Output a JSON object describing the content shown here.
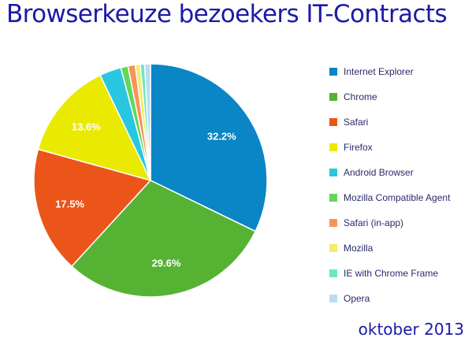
{
  "header": {
    "title": "Browserkeuze bezoekers IT-Contracts"
  },
  "footer": {
    "text": "oktober 2013"
  },
  "chart_data": {
    "type": "pie",
    "title": "Browserkeuze bezoekers IT-Contracts",
    "start_angle_deg": 0,
    "direction": "clockwise",
    "legend_position": "right",
    "slices": [
      {
        "name": "Internet Explorer",
        "value": 32.2,
        "color": "#0a85c5",
        "label": "32.2%"
      },
      {
        "name": "Chrome",
        "value": 29.6,
        "color": "#56b233",
        "label": "29.6%"
      },
      {
        "name": "Safari",
        "value": 17.5,
        "color": "#ec5519",
        "label": "17.5%"
      },
      {
        "name": "Firefox",
        "value": 13.6,
        "color": "#eaea00",
        "label": "13.6%"
      },
      {
        "name": "Android Browser",
        "value": 3.0,
        "color": "#29c6e0",
        "label": ""
      },
      {
        "name": "Mozilla Compatible Agent",
        "value": 1.0,
        "color": "#63d65a",
        "label": ""
      },
      {
        "name": "Safari (in-app)",
        "value": 1.0,
        "color": "#f5945a",
        "label": ""
      },
      {
        "name": "Mozilla",
        "value": 0.7,
        "color": "#f4ec6a",
        "label": ""
      },
      {
        "name": "IE with Chrome Frame",
        "value": 0.6,
        "color": "#6de8be",
        "label": ""
      },
      {
        "name": "Opera",
        "value": 0.8,
        "color": "#b8dcf5",
        "label": ""
      }
    ]
  }
}
